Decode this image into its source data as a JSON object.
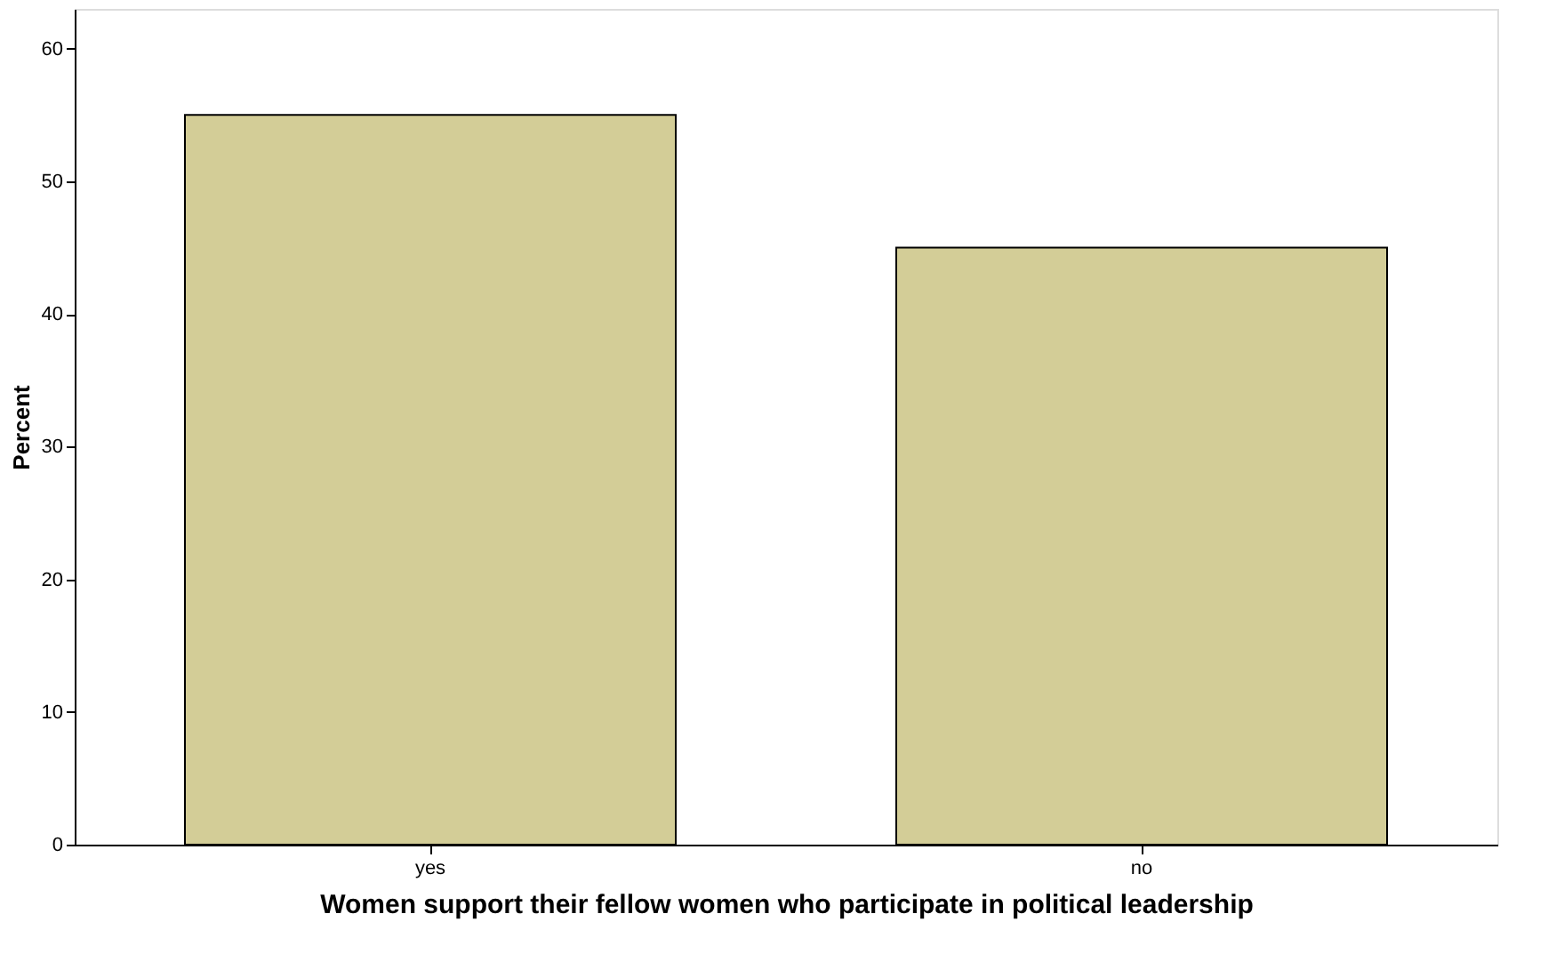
{
  "chart_data": {
    "type": "bar",
    "xlabel": "Women support  their fellow women who participate in political leadership",
    "ylabel": "Percent",
    "categories": [
      "yes",
      "no"
    ],
    "values": [
      55,
      45
    ],
    "color": "#d3cd97",
    "ylim": [
      0,
      63
    ],
    "yticks": [
      0,
      10,
      20,
      30,
      40,
      50,
      60
    ],
    "grid": false
  }
}
